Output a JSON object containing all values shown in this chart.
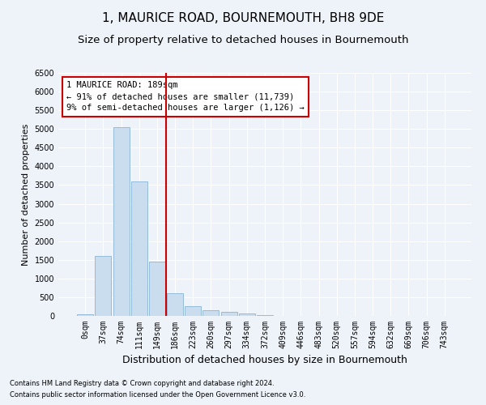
{
  "title": "1, MAURICE ROAD, BOURNEMOUTH, BH8 9DE",
  "subtitle": "Size of property relative to detached houses in Bournemouth",
  "xlabel": "Distribution of detached houses by size in Bournemouth",
  "ylabel": "Number of detached properties",
  "categories": [
    "0sqm",
    "37sqm",
    "74sqm",
    "111sqm",
    "149sqm",
    "186sqm",
    "223sqm",
    "260sqm",
    "297sqm",
    "334sqm",
    "372sqm",
    "409sqm",
    "446sqm",
    "483sqm",
    "520sqm",
    "557sqm",
    "594sqm",
    "632sqm",
    "669sqm",
    "706sqm",
    "743sqm"
  ],
  "values": [
    50,
    1600,
    5050,
    3600,
    1450,
    600,
    270,
    150,
    100,
    70,
    30,
    5,
    0,
    0,
    0,
    0,
    0,
    0,
    0,
    0,
    5
  ],
  "bar_color": "#c9ddef",
  "bar_edge_color": "#8ab4d4",
  "vline_index": 5,
  "vline_color": "#cc0000",
  "annotation_line1": "1 MAURICE ROAD: 189sqm",
  "annotation_line2": "← 91% of detached houses are smaller (11,739)",
  "annotation_line3": "9% of semi-detached houses are larger (1,126) →",
  "annotation_box_color": "#cc0000",
  "ylim": [
    0,
    6500
  ],
  "yticks": [
    0,
    500,
    1000,
    1500,
    2000,
    2500,
    3000,
    3500,
    4000,
    4500,
    5000,
    5500,
    6000,
    6500
  ],
  "footnote1": "Contains HM Land Registry data © Crown copyright and database right 2024.",
  "footnote2": "Contains public sector information licensed under the Open Government Licence v3.0.",
  "background_color": "#eef2f9",
  "plot_bg_color": "#eef2f9",
  "grid_color": "#ffffff",
  "title_fontsize": 11,
  "subtitle_fontsize": 9.5,
  "xlabel_fontsize": 9,
  "ylabel_fontsize": 8,
  "tick_fontsize": 7,
  "annotation_fontsize": 7.5,
  "footnote_fontsize": 6
}
